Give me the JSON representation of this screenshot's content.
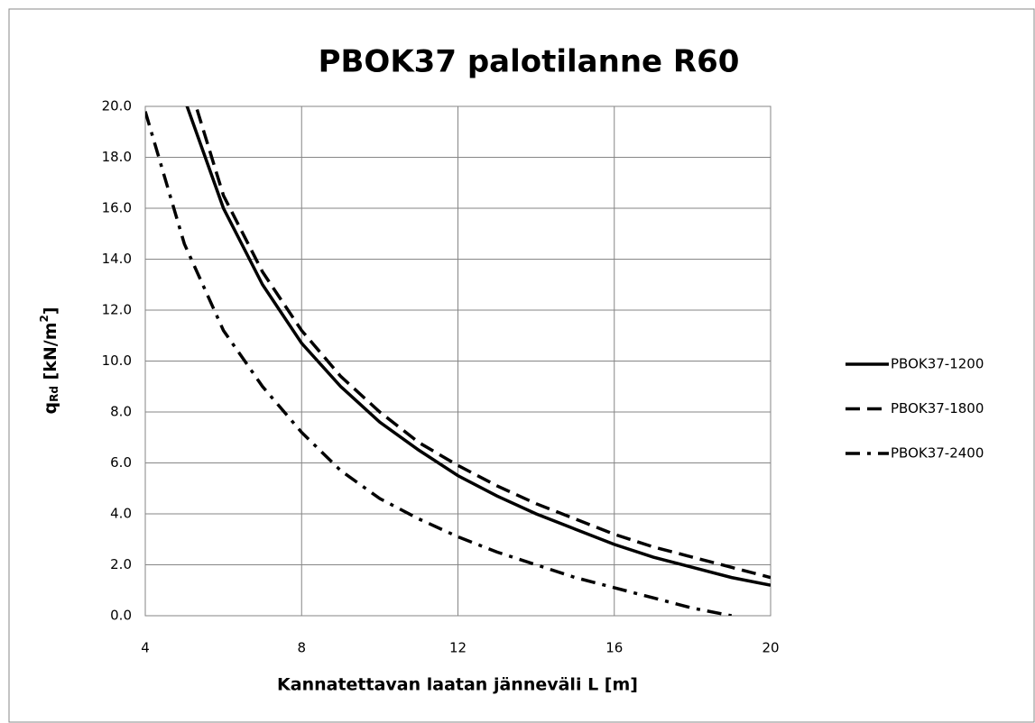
{
  "chart_data": {
    "type": "line",
    "title": "PBOK37 palotilanne R60",
    "x_label": "Kannatettavan laatan jänneväli L [m]",
    "y_label": [
      "q",
      "Rd",
      " [kN/m",
      "2",
      "]"
    ],
    "x": [
      4,
      5,
      6,
      7,
      8,
      9,
      10,
      11,
      12,
      13,
      14,
      15,
      16,
      17,
      18,
      19,
      20
    ],
    "series": [
      {
        "name": "PBOK37-1200",
        "color": "#000000",
        "style": "solid",
        "values": [
          null,
          20.3,
          16.0,
          13.0,
          10.7,
          9.0,
          7.6,
          6.5,
          5.5,
          4.7,
          4.0,
          3.4,
          2.8,
          2.3,
          1.9,
          1.5,
          1.2
        ]
      },
      {
        "name": "PBOK37-1800",
        "color": "#000000",
        "style": "dashed",
        "values": [
          null,
          21.5,
          16.5,
          13.5,
          11.2,
          9.4,
          8.0,
          6.8,
          5.9,
          5.1,
          4.4,
          3.8,
          3.2,
          2.7,
          2.3,
          1.9,
          1.5
        ]
      },
      {
        "name": "PBOK37-2400",
        "color": "#000000",
        "style": "dashdot",
        "values": [
          19.8,
          14.6,
          11.2,
          9.0,
          7.2,
          5.7,
          4.6,
          3.8,
          3.1,
          2.5,
          2.0,
          1.5,
          1.1,
          0.7,
          0.3,
          0.0,
          null
        ]
      }
    ],
    "xlim": [
      4,
      20
    ],
    "xticks": [
      4,
      8,
      12,
      16,
      20
    ],
    "ylim": [
      0,
      20
    ],
    "yticks": [
      {
        "value": 0,
        "label": "0.0"
      },
      {
        "value": 2,
        "label": "2.0"
      },
      {
        "value": 4,
        "label": "4.0"
      },
      {
        "value": 6,
        "label": "6.0"
      },
      {
        "value": 8,
        "label": "8.0"
      },
      {
        "value": 10,
        "label": "10.0"
      },
      {
        "value": 12,
        "label": "12.0"
      },
      {
        "value": 14,
        "label": "14.0"
      },
      {
        "value": 16,
        "label": "16.0"
      },
      {
        "value": 18,
        "label": "18.0"
      },
      {
        "value": 20,
        "label": "20.0"
      }
    ],
    "grid": true,
    "legend": "right"
  }
}
